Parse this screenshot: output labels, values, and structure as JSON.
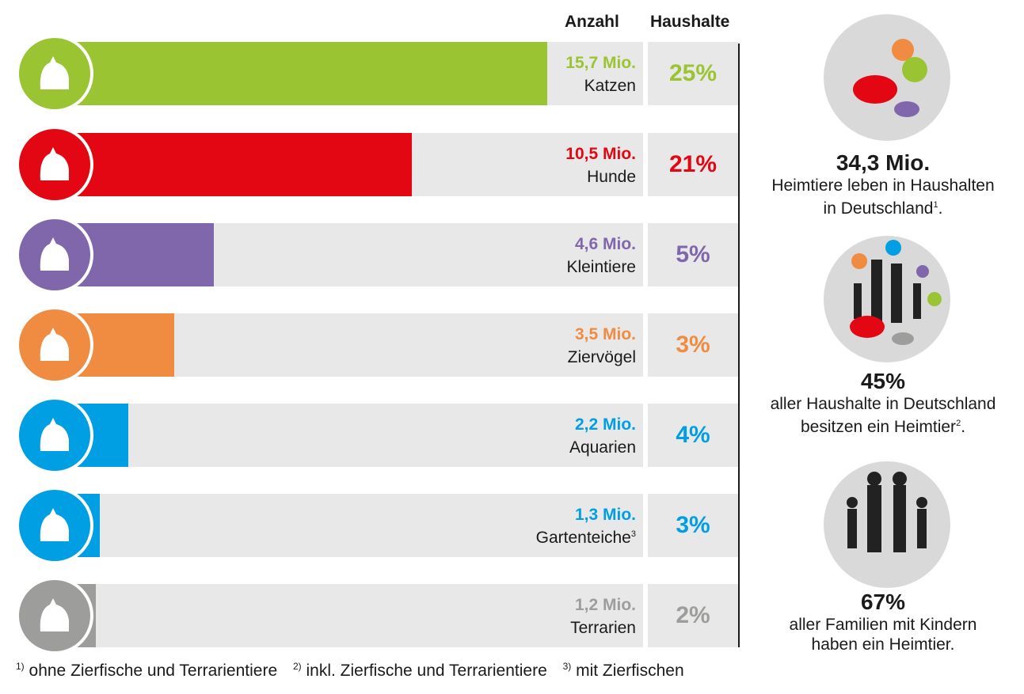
{
  "chart_data": {
    "type": "bar",
    "orientation": "horizontal",
    "columns": [
      "Anzahl",
      "Haushalte"
    ],
    "categories": [
      "Katzen",
      "Hunde",
      "Kleintiere",
      "Ziervögel",
      "Aquarien",
      "Gartenteiche",
      "Terrarien"
    ],
    "category_superscripts": [
      "",
      "",
      "",
      "",
      "",
      "3",
      ""
    ],
    "values": [
      15.7,
      10.5,
      4.6,
      3.5,
      2.2,
      1.3,
      1.2
    ],
    "value_labels": [
      "15,7 Mio.",
      "10,5 Mio.",
      "4,6 Mio.",
      "3,5 Mio.",
      "2,2 Mio.",
      "1,3 Mio.",
      "1,2 Mio."
    ],
    "households_pct": [
      "25%",
      "21%",
      "5%",
      "3%",
      "4%",
      "3%",
      "2%"
    ],
    "colors": [
      "#9bc432",
      "#e30613",
      "#8066ab",
      "#f08c41",
      "#009fe3",
      "#009fe3",
      "#9d9d9c"
    ],
    "icons": [
      "cat-icon",
      "dog-icon",
      "rabbit-icon",
      "parrot-icon",
      "fish-icon",
      "pond-fish-icon",
      "turtle-icon"
    ]
  },
  "side": [
    {
      "big": "34,3 Mio.",
      "line1": "Heimtiere leben in Haushalten",
      "line2": "in Deutschland",
      "sup": "1",
      "end": ".",
      "icon": "pets-group-icon"
    },
    {
      "big": "45%",
      "line1": "aller Haushalte in Deutschland",
      "line2": "besitzen ein Heimtier",
      "sup": "2",
      "end": ".",
      "icon": "family-with-pets-icon"
    },
    {
      "big": "67%",
      "line1": "aller Familien mit Kindern",
      "line2": "haben ein Heimtier.",
      "sup": "",
      "end": "",
      "icon": "family-icon"
    }
  ],
  "footnotes": [
    {
      "mark": "1)",
      "text": "ohne Zierfische und Terrarientiere"
    },
    {
      "mark": "2)",
      "text": "inkl. Zierfische und Terrarientiere"
    },
    {
      "mark": "3)",
      "text": "mit Zierfischen"
    }
  ]
}
